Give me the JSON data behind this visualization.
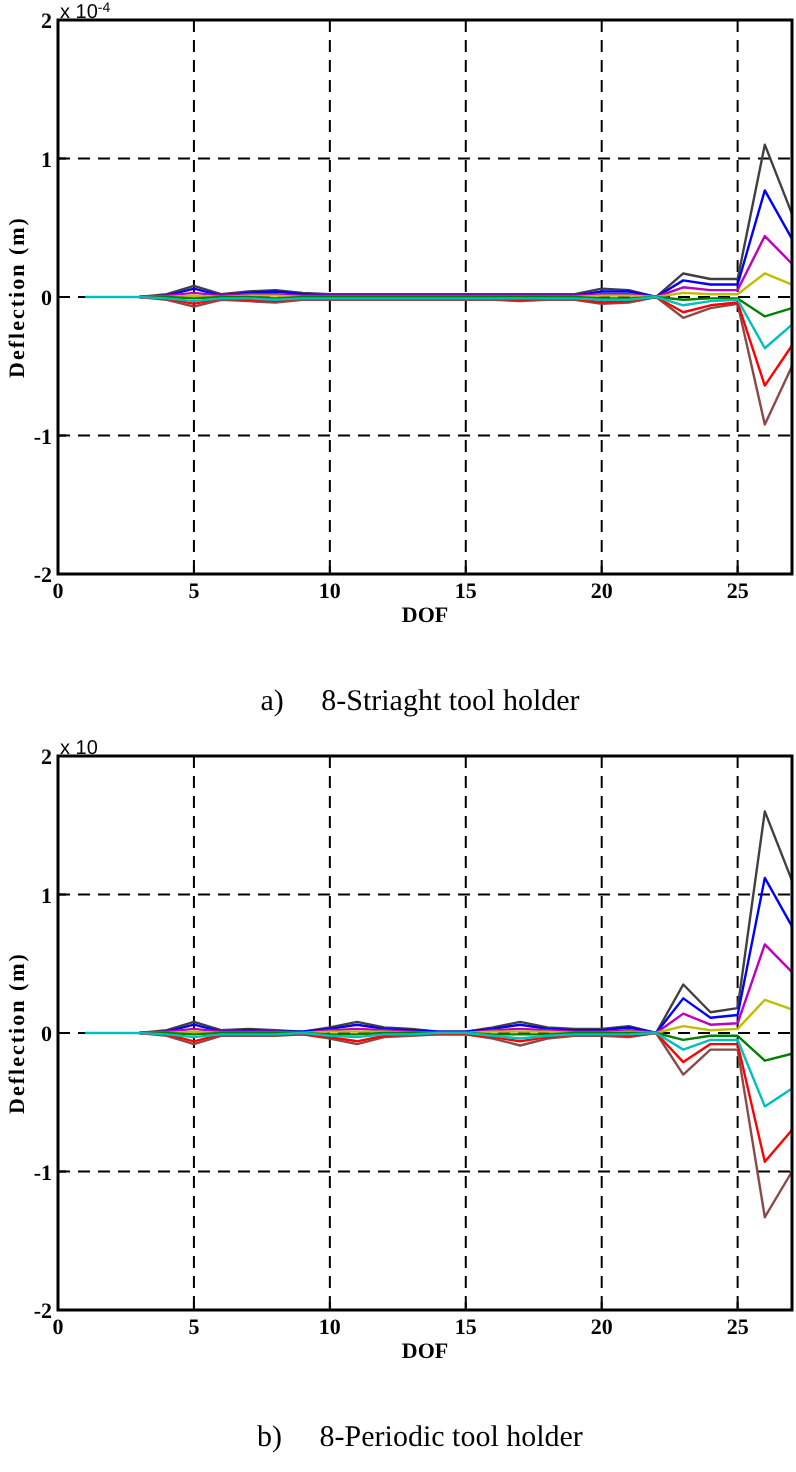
{
  "chart_data": [
    {
      "type": "line",
      "title": "a)     8-Striaght tool holder",
      "xlabel": "DOF",
      "ylabel": "Deflection (m)",
      "annotations": [
        "x 10$^{-4}$"
      ],
      "x": [
        1,
        2,
        3,
        4,
        5,
        6,
        7,
        8,
        9,
        10,
        11,
        12,
        13,
        14,
        15,
        16,
        17,
        18,
        19,
        20,
        21,
        22,
        23,
        24,
        25,
        26,
        27
      ],
      "xlim": [
        0,
        27
      ],
      "xticks": [
        0,
        5,
        10,
        15,
        20,
        25
      ],
      "ylim": [
        -2,
        2
      ],
      "yticks": [
        -2,
        -1,
        0,
        1,
        2
      ],
      "grid": true,
      "line_style": "solid",
      "series": [
        {
          "color": "#404040",
          "values": [
            null,
            null,
            0,
            0.02,
            0.08,
            0.02,
            0.04,
            0.05,
            0.03,
            0.02,
            0.02,
            0.02,
            0.02,
            0.02,
            0.02,
            0.02,
            0.02,
            0.02,
            0.02,
            0.06,
            0.05,
            0,
            0.17,
            0.13,
            0.13,
            1.1,
            0.6
          ]
        },
        {
          "color": "#0000ff",
          "values": [
            null,
            null,
            0,
            0.01,
            0.06,
            0.01,
            0.03,
            0.04,
            0.02,
            0.01,
            0.01,
            0.01,
            0.01,
            0.01,
            0.01,
            0.01,
            0.01,
            0.01,
            0.01,
            0.04,
            0.04,
            0,
            0.12,
            0.09,
            0.09,
            0.77,
            0.42
          ]
        },
        {
          "color": "#bf00bf",
          "values": [
            null,
            null,
            0,
            0.01,
            0.03,
            0.01,
            0.02,
            0.02,
            0.01,
            0.01,
            0.01,
            0.01,
            0.01,
            0.01,
            0.01,
            0.01,
            0.01,
            0.01,
            0.01,
            0.02,
            0.02,
            0,
            0.07,
            0.05,
            0.05,
            0.44,
            0.24
          ]
        },
        {
          "color": "#bfbf00",
          "values": [
            null,
            null,
            0,
            0,
            0.01,
            0,
            0.01,
            0.01,
            0,
            0,
            0,
            0,
            0,
            0,
            0,
            0,
            0,
            0,
            0,
            0.01,
            0.01,
            0,
            0.03,
            0.02,
            0.02,
            0.17,
            0.09
          ]
        },
        {
          "color": "#008000",
          "values": [
            null,
            null,
            0,
            0,
            -0.01,
            0,
            0,
            -0.01,
            0,
            0,
            0,
            0,
            0,
            0,
            0,
            0,
            0,
            0,
            0,
            -0.01,
            -0.01,
            0,
            -0.02,
            -0.01,
            -0.01,
            -0.14,
            -0.08
          ]
        },
        {
          "color": "#8b4a4a",
          "values": [
            null,
            null,
            0,
            -0.02,
            -0.07,
            -0.02,
            -0.03,
            -0.04,
            -0.02,
            -0.02,
            -0.02,
            -0.02,
            -0.02,
            -0.02,
            -0.02,
            -0.02,
            -0.03,
            -0.02,
            -0.02,
            -0.05,
            -0.04,
            0,
            -0.15,
            -0.08,
            -0.05,
            -0.92,
            -0.5
          ]
        },
        {
          "color": "#ff0000",
          "values": [
            null,
            null,
            0,
            -0.01,
            -0.05,
            -0.01,
            -0.02,
            -0.03,
            -0.01,
            -0.01,
            -0.01,
            -0.01,
            -0.01,
            -0.01,
            -0.01,
            -0.01,
            -0.02,
            -0.01,
            -0.01,
            -0.04,
            -0.03,
            0,
            -0.11,
            -0.06,
            -0.04,
            -0.64,
            -0.35
          ]
        },
        {
          "color": "#00bfbf",
          "values": [
            0,
            0,
            0,
            -0.01,
            -0.03,
            -0.01,
            -0.01,
            -0.02,
            -0.01,
            -0.01,
            -0.01,
            -0.01,
            -0.01,
            -0.01,
            -0.01,
            -0.01,
            -0.01,
            -0.01,
            -0.01,
            -0.02,
            -0.02,
            0,
            -0.06,
            -0.03,
            -0.02,
            -0.37,
            -0.2
          ]
        }
      ]
    },
    {
      "type": "line",
      "title": "b)     8-Periodic tool holder",
      "xlabel": "DOF",
      "ylabel": "Deflection (m)",
      "annotations": [
        "x 10"
      ],
      "x": [
        1,
        2,
        3,
        4,
        5,
        6,
        7,
        8,
        9,
        10,
        11,
        12,
        13,
        14,
        15,
        16,
        17,
        18,
        19,
        20,
        21,
        22,
        23,
        24,
        25,
        26,
        27
      ],
      "xlim": [
        0,
        27
      ],
      "xticks": [
        0,
        5,
        10,
        15,
        20,
        25
      ],
      "ylim": [
        -2,
        2
      ],
      "yticks": [
        -2,
        -1,
        0,
        1,
        2
      ],
      "grid": true,
      "line_style": "solid",
      "series": [
        {
          "color": "#404040",
          "values": [
            null,
            null,
            0,
            0.02,
            0.08,
            0.02,
            0.03,
            0.02,
            0.01,
            0.04,
            0.08,
            0.04,
            0.03,
            0.01,
            0.01,
            0.04,
            0.08,
            0.04,
            0.03,
            0.03,
            0.05,
            0,
            0.35,
            0.15,
            0.18,
            1.6,
            1.1
          ]
        },
        {
          "color": "#0000ff",
          "values": [
            null,
            null,
            0,
            0.01,
            0.06,
            0.01,
            0.02,
            0.01,
            0.01,
            0.03,
            0.06,
            0.03,
            0.02,
            0.01,
            0.01,
            0.03,
            0.06,
            0.03,
            0.02,
            0.02,
            0.04,
            0,
            0.25,
            0.11,
            0.13,
            1.12,
            0.77
          ]
        },
        {
          "color": "#bf00bf",
          "values": [
            null,
            null,
            0,
            0.01,
            0.03,
            0.01,
            0.01,
            0.01,
            0,
            0.02,
            0.03,
            0.02,
            0.01,
            0,
            0,
            0.02,
            0.03,
            0.02,
            0.01,
            0.01,
            0.02,
            0,
            0.14,
            0.06,
            0.07,
            0.64,
            0.44
          ]
        },
        {
          "color": "#bfbf00",
          "values": [
            null,
            null,
            0,
            0,
            0.01,
            0,
            0,
            0,
            0,
            0.01,
            0.01,
            0.01,
            0,
            0,
            0,
            0.01,
            0.01,
            0.01,
            0,
            0,
            0.01,
            0,
            0.05,
            0.02,
            0.03,
            0.24,
            0.17
          ]
        },
        {
          "color": "#008000",
          "values": [
            null,
            null,
            0,
            0,
            -0.01,
            0,
            0,
            0,
            0,
            -0.01,
            -0.01,
            0,
            0,
            0,
            0,
            -0.01,
            -0.01,
            -0.01,
            0,
            0,
            0,
            0,
            -0.05,
            -0.02,
            -0.02,
            -0.2,
            -0.15
          ]
        },
        {
          "color": "#8b4a4a",
          "values": [
            null,
            null,
            0,
            -0.02,
            -0.08,
            -0.02,
            -0.02,
            -0.02,
            -0.01,
            -0.04,
            -0.08,
            -0.03,
            -0.02,
            -0.01,
            -0.01,
            -0.04,
            -0.09,
            -0.04,
            -0.02,
            -0.02,
            -0.03,
            0,
            -0.3,
            -0.12,
            -0.12,
            -1.33,
            -1
          ]
        },
        {
          "color": "#ff0000",
          "values": [
            null,
            null,
            0,
            -0.01,
            -0.06,
            -0.01,
            -0.01,
            -0.01,
            -0.01,
            -0.03,
            -0.06,
            -0.02,
            -0.01,
            -0.01,
            -0.01,
            -0.03,
            -0.06,
            -0.03,
            -0.01,
            -0.01,
            -0.02,
            0,
            -0.21,
            -0.08,
            -0.08,
            -0.93,
            -0.7
          ]
        },
        {
          "color": "#00bfbf",
          "values": [
            0,
            0,
            0,
            -0.01,
            -0.03,
            -0.01,
            -0.01,
            -0.01,
            0,
            -0.02,
            -0.03,
            -0.01,
            -0.01,
            0,
            0,
            -0.02,
            -0.04,
            -0.02,
            -0.01,
            -0.01,
            -0.01,
            0,
            -0.12,
            -0.05,
            -0.05,
            -0.53,
            -0.4
          ]
        }
      ]
    }
  ]
}
